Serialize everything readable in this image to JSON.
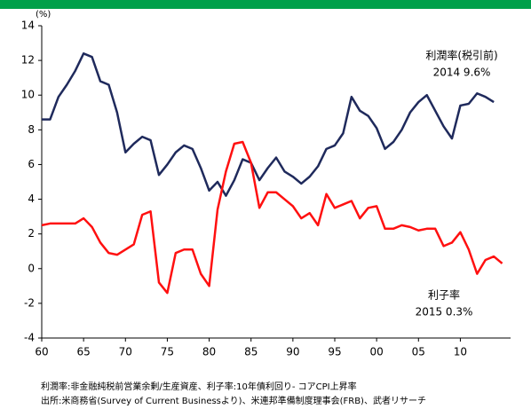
{
  "chart_data": {
    "type": "line",
    "y_unit": "(%)",
    "series": [
      {
        "name": "利潤率(税引前)",
        "color": "#1f2a5c",
        "x": [
          1960,
          1961,
          1962,
          1963,
          1964,
          1965,
          1966,
          1967,
          1968,
          1969,
          1970,
          1971,
          1972,
          1973,
          1974,
          1975,
          1976,
          1977,
          1978,
          1979,
          1980,
          1981,
          1982,
          1983,
          1984,
          1985,
          1986,
          1987,
          1988,
          1989,
          1990,
          1991,
          1992,
          1993,
          1994,
          1995,
          1996,
          1997,
          1998,
          1999,
          2000,
          2001,
          2002,
          2003,
          2004,
          2005,
          2006,
          2007,
          2008,
          2009,
          2010,
          2011,
          2012,
          2013,
          2014
        ],
        "values": [
          8.6,
          8.6,
          9.9,
          10.6,
          11.4,
          12.4,
          12.2,
          10.8,
          10.6,
          9.0,
          6.7,
          7.2,
          7.6,
          7.4,
          5.4,
          6.0,
          6.7,
          7.1,
          6.9,
          5.8,
          4.5,
          5.0,
          4.2,
          5.1,
          6.3,
          6.1,
          5.1,
          5.8,
          6.4,
          5.6,
          5.3,
          4.9,
          5.3,
          5.9,
          6.9,
          7.1,
          7.8,
          9.9,
          9.1,
          8.8,
          8.1,
          6.9,
          7.3,
          8.0,
          9.0,
          9.6,
          10.0,
          9.1,
          8.2,
          7.5,
          9.4,
          9.5,
          10.1,
          9.9,
          9.6
        ]
      },
      {
        "name": "利子率",
        "color": "#ff1010",
        "x": [
          1960,
          1961,
          1962,
          1963,
          1964,
          1965,
          1966,
          1967,
          1968,
          1969,
          1970,
          1971,
          1972,
          1973,
          1974,
          1975,
          1976,
          1977,
          1978,
          1979,
          1980,
          1981,
          1982,
          1983,
          1984,
          1985,
          1986,
          1987,
          1988,
          1989,
          1990,
          1991,
          1992,
          1993,
          1994,
          1995,
          1996,
          1997,
          1998,
          1999,
          2000,
          2001,
          2002,
          2003,
          2004,
          2005,
          2006,
          2007,
          2008,
          2009,
          2010,
          2011,
          2012,
          2013,
          2014,
          2015
        ],
        "values": [
          2.5,
          2.6,
          2.6,
          2.6,
          2.6,
          2.9,
          2.4,
          1.5,
          0.9,
          0.8,
          1.1,
          1.4,
          3.1,
          3.3,
          -0.8,
          -1.4,
          0.9,
          1.1,
          1.1,
          -0.3,
          -1.0,
          3.4,
          5.6,
          7.2,
          7.3,
          6.1,
          3.5,
          4.4,
          4.4,
          4.0,
          3.6,
          2.9,
          3.2,
          2.5,
          4.3,
          3.5,
          3.7,
          3.9,
          2.9,
          3.5,
          3.6,
          2.3,
          2.3,
          2.5,
          2.4,
          2.2,
          2.3,
          2.3,
          1.3,
          1.5,
          2.1,
          1.1,
          -0.3,
          0.5,
          0.7,
          0.3
        ]
      }
    ],
    "annotations": [
      {
        "text": "利潤率(税引前)",
        "sub": "2014 9.6%"
      },
      {
        "text": "利子率",
        "sub": "2015 0.3%"
      }
    ],
    "xlim": [
      1960,
      2016
    ],
    "xticks": [
      {
        "value": 1960,
        "label": "60"
      },
      {
        "value": 1965,
        "label": "65"
      },
      {
        "value": 1970,
        "label": "70"
      },
      {
        "value": 1975,
        "label": "75"
      },
      {
        "value": 1980,
        "label": "80"
      },
      {
        "value": 1985,
        "label": "85"
      },
      {
        "value": 1990,
        "label": "90"
      },
      {
        "value": 1995,
        "label": "95"
      },
      {
        "value": 2000,
        "label": "00"
      },
      {
        "value": 2005,
        "label": "05"
      },
      {
        "value": 2010,
        "label": "10"
      }
    ],
    "ylim": [
      -4,
      14
    ],
    "yticks": [
      -4,
      -2,
      0,
      2,
      4,
      6,
      8,
      10,
      12,
      14
    ],
    "notes": [
      "利潤率:非金融純税前営業余剰/生産資産、利子率:10年債利回り- コアCPI上昇率",
      "出所:米商務省(Survey of Current Businessより)、米連邦準備制度理事会(FRB)、武者リサーチ"
    ]
  }
}
